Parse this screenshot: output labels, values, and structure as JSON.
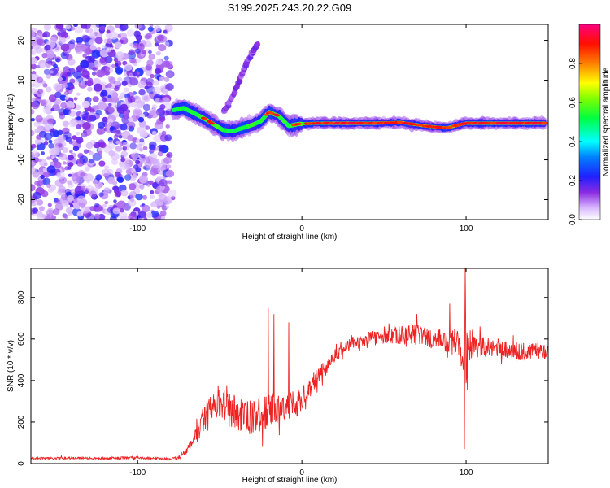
{
  "title": "S199.2025.243.20.22.G09",
  "chart_data": [
    {
      "type": "heatmap",
      "title": "S199.2025.243.20.22.G09",
      "xlabel": "Height of straight line (km)",
      "ylabel": "Frequency (Hz)",
      "xlim": [
        -165,
        150
      ],
      "ylim": [
        -25,
        24
      ],
      "xticks": [
        -100,
        0,
        100
      ],
      "yticks": [
        -20,
        -10,
        0,
        10,
        20
      ],
      "colorbar": {
        "label": "Normalized spectral amplitude",
        "range": [
          0,
          1
        ],
        "ticks": [
          0.0,
          0.2,
          0.4,
          0.6,
          0.8
        ],
        "colors": [
          "#ffffff",
          "#c8a0ff",
          "#6600ff",
          "#0000ff",
          "#00ffff",
          "#00ff00",
          "#ffff00",
          "#ff8000",
          "#ff0000",
          "#ff0080"
        ]
      },
      "noise_region_x": [
        -165,
        -80
      ],
      "ridge": [
        {
          "x": -78,
          "f": 2.5,
          "a": 0.5
        },
        {
          "x": -72,
          "f": 3.0,
          "a": 0.6
        },
        {
          "x": -66,
          "f": 1.8,
          "a": 0.55
        },
        {
          "x": -60,
          "f": 0.5,
          "a": 0.65
        },
        {
          "x": -54,
          "f": -1.0,
          "a": 0.6
        },
        {
          "x": -48,
          "f": -2.5,
          "a": 0.55
        },
        {
          "x": -42,
          "f": -2.8,
          "a": 0.5
        },
        {
          "x": -36,
          "f": -2.0,
          "a": 0.55
        },
        {
          "x": -30,
          "f": -1.2,
          "a": 0.6
        },
        {
          "x": -25,
          "f": -0.3,
          "a": 0.55
        },
        {
          "x": -20,
          "f": 2.0,
          "a": 0.65
        },
        {
          "x": -14,
          "f": 1.0,
          "a": 0.6
        },
        {
          "x": -8,
          "f": -1.5,
          "a": 0.55
        },
        {
          "x": -2,
          "f": -1.0,
          "a": 0.65
        },
        {
          "x": 10,
          "f": -0.8,
          "a": 0.7
        },
        {
          "x": 25,
          "f": -0.8,
          "a": 0.9
        },
        {
          "x": 45,
          "f": -0.8,
          "a": 0.95
        },
        {
          "x": 60,
          "f": -0.6,
          "a": 0.7
        },
        {
          "x": 75,
          "f": -1.5,
          "a": 0.8
        },
        {
          "x": 88,
          "f": -2.0,
          "a": 0.75
        },
        {
          "x": 100,
          "f": -0.8,
          "a": 0.9
        },
        {
          "x": 120,
          "f": -0.8,
          "a": 0.95
        },
        {
          "x": 148,
          "f": -0.8,
          "a": 0.95
        }
      ],
      "side_branch": [
        {
          "x": -48,
          "f": 2.0
        },
        {
          "x": -42,
          "f": 6.0
        },
        {
          "x": -38,
          "f": 10.0
        },
        {
          "x": -34,
          "f": 14.0
        },
        {
          "x": -30,
          "f": 17.0
        },
        {
          "x": -27,
          "f": 19.0
        }
      ]
    },
    {
      "type": "line",
      "xlabel": "Height of straight line (km)",
      "ylabel": "SNR (10 * v/v)",
      "xlim": [
        -165,
        150
      ],
      "ylim": [
        0,
        940
      ],
      "xticks": [
        -100,
        0,
        100
      ],
      "yticks": [
        0,
        200,
        400,
        600,
        800
      ],
      "color": "#ee2222",
      "series": [
        {
          "name": "SNR",
          "x": [
            -165,
            -150,
            -140,
            -130,
            -120,
            -110,
            -100,
            -90,
            -80,
            -75,
            -70,
            -65,
            -60,
            -55,
            -50,
            -45,
            -40,
            -35,
            -30,
            -25,
            -20,
            -15,
            -10,
            -5,
            0,
            5,
            10,
            15,
            20,
            25,
            30,
            40,
            50,
            60,
            70,
            80,
            90,
            95,
            98,
            100,
            102,
            105,
            110,
            120,
            130,
            140,
            150
          ],
          "mean": [
            25,
            25,
            28,
            25,
            25,
            27,
            28,
            26,
            22,
            30,
            60,
            130,
            210,
            280,
            300,
            260,
            250,
            230,
            220,
            240,
            250,
            260,
            270,
            290,
            310,
            370,
            420,
            470,
            520,
            550,
            580,
            600,
            610,
            620,
            620,
            600,
            580,
            590,
            560,
            520,
            560,
            580,
            560,
            560,
            540,
            540,
            540
          ],
          "amp": [
            10,
            12,
            12,
            10,
            10,
            12,
            12,
            10,
            8,
            20,
            40,
            90,
            130,
            150,
            170,
            170,
            170,
            170,
            160,
            170,
            160,
            140,
            130,
            120,
            110,
            100,
            80,
            70,
            60,
            60,
            60,
            70,
            70,
            90,
            100,
            100,
            110,
            150,
            250,
            300,
            200,
            120,
            100,
            90,
            90,
            80,
            80
          ]
        }
      ],
      "spikes": [
        {
          "x": -20.5,
          "y": 750
        },
        {
          "x": -17,
          "y": 720
        },
        {
          "x": -8,
          "y": 680
        },
        {
          "x": 70,
          "y": 720
        },
        {
          "x": 90,
          "y": 770
        },
        {
          "x": 99.5,
          "y": 940
        },
        {
          "x": 99,
          "y": 70
        }
      ]
    }
  ]
}
